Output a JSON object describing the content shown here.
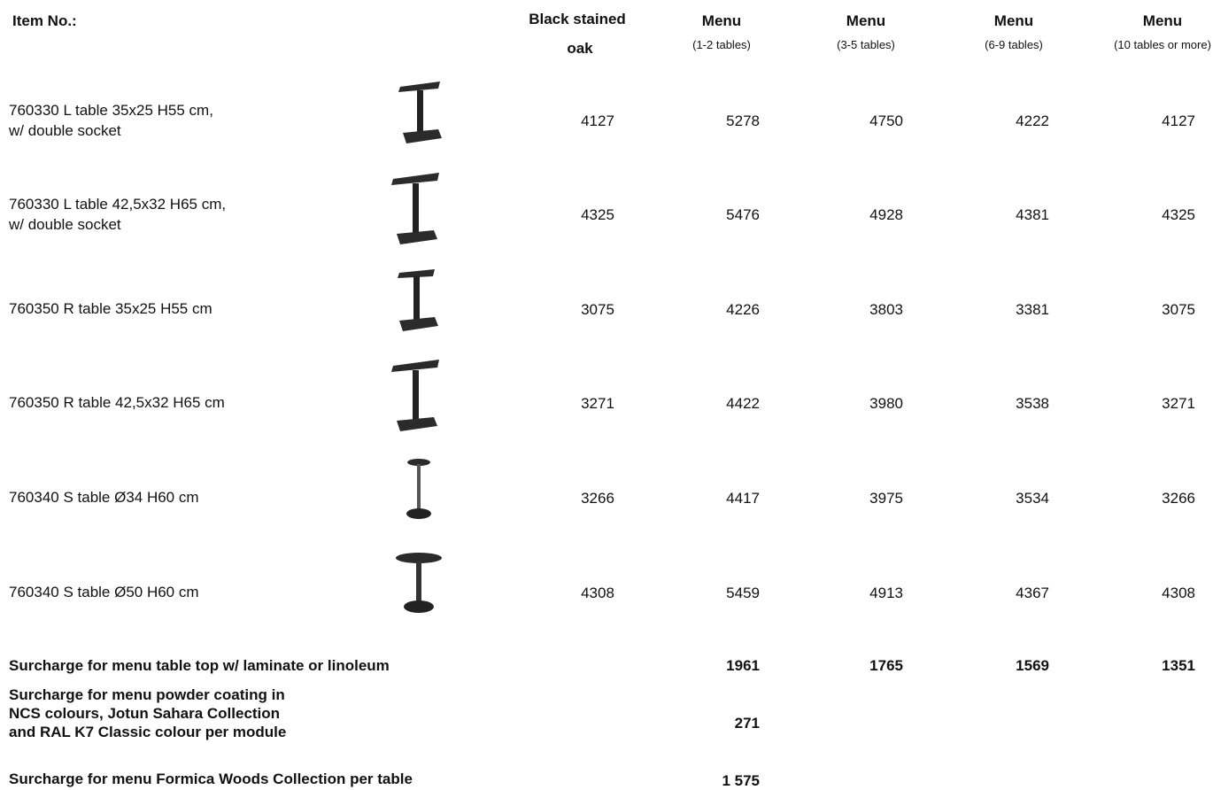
{
  "header": {
    "item": "Item No.:",
    "oak": [
      "Black stained",
      "oak"
    ],
    "menus": [
      {
        "title": "Menu",
        "note": "(1-2 tables)"
      },
      {
        "title": "Menu",
        "note": "(3-5 tables)"
      },
      {
        "title": "Menu",
        "note": "(6-9 tables)"
      },
      {
        "title": "Menu",
        "note": "(10 tables or more)"
      }
    ]
  },
  "rows": [
    {
      "name": [
        "760330 L table 35x25 H55 cm,",
        "w/ double socket"
      ],
      "oak": 4127,
      "prices": [
        5278,
        4750,
        4222,
        4127
      ]
    },
    {
      "name": [
        "760330 L table 42,5x32 H65 cm,",
        "w/ double socket"
      ],
      "oak": 4325,
      "prices": [
        5476,
        4928,
        4381,
        4325
      ]
    },
    {
      "name": [
        "760350 R table 35x25 H55 cm"
      ],
      "oak": 3075,
      "prices": [
        4226,
        3803,
        3381,
        3075
      ]
    },
    {
      "name": [
        "760350 R table 42,5x32 H65 cm"
      ],
      "oak": 3271,
      "prices": [
        4422,
        3980,
        3538,
        3271
      ]
    },
    {
      "name": [
        "760340 S table Ø34 H60 cm"
      ],
      "oak": 3266,
      "prices": [
        4417,
        3975,
        3534,
        3266
      ]
    },
    {
      "name": [
        "760340 S table Ø50 H60 cm"
      ],
      "oak": 4308,
      "prices": [
        5459,
        4913,
        4367,
        4308
      ]
    }
  ],
  "surcharges": [
    {
      "label": [
        "Surcharge for menu table top w/ laminate or linoleum"
      ],
      "prices": [
        1961,
        1765,
        1569,
        1351
      ]
    },
    {
      "label": [
        "Surcharge for menu powder coating in",
        "NCS  colours, Jotun Sahara Collection",
        "and RAL K7 Classic colour per module"
      ],
      "prices": [
        271
      ]
    },
    {
      "label": [
        "Surcharge for menu Formica Woods Collection per table"
      ],
      "prices": [
        "1 575"
      ]
    }
  ]
}
